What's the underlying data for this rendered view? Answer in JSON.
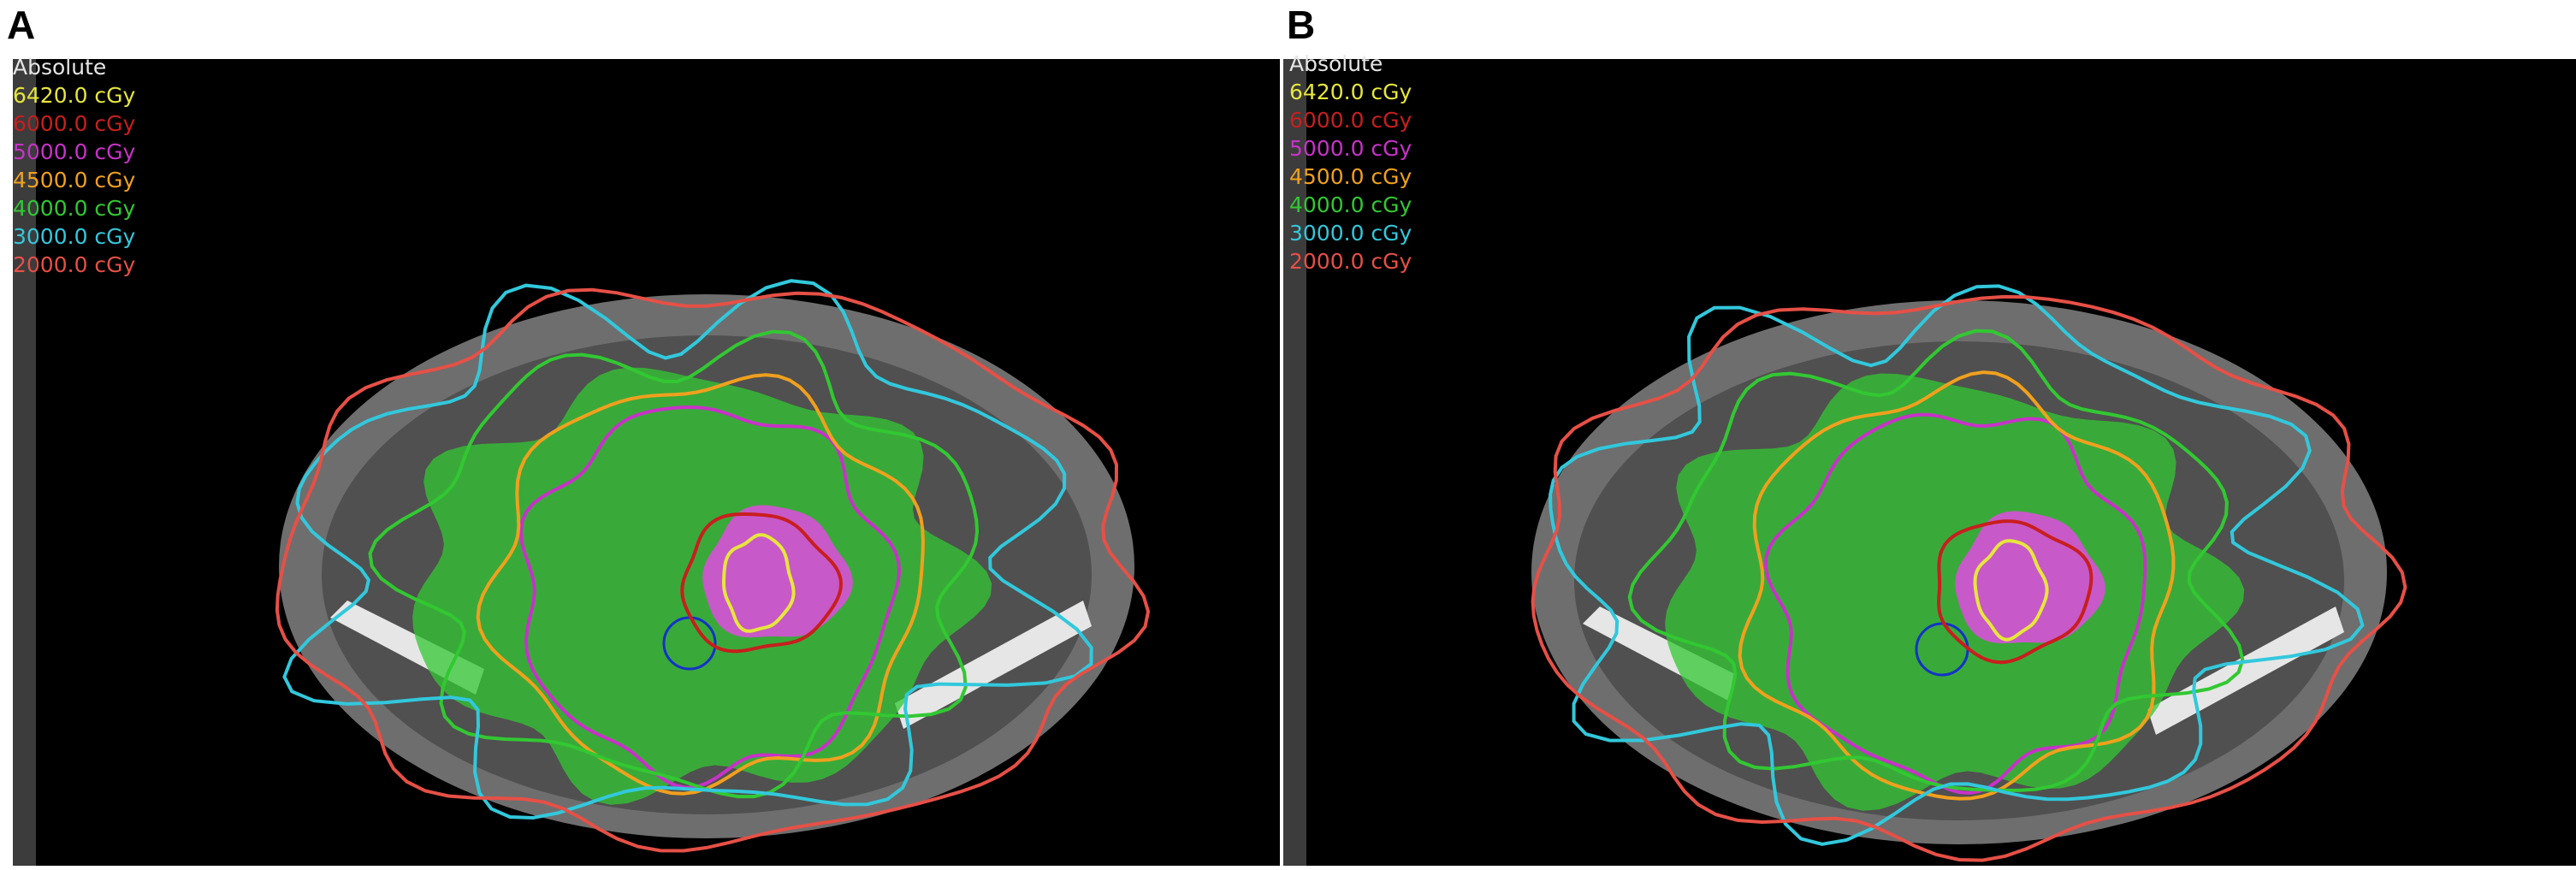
{
  "panels": [
    {
      "label": "A",
      "legend_title": "Absolute",
      "legend": [
        {
          "text": "6420.0 cGy",
          "color": "#e6e63c"
        },
        {
          "text": "6000.0 cGy",
          "color": "#c81e1e"
        },
        {
          "text": "5000.0 cGy",
          "color": "#c832c8"
        },
        {
          "text": "4500.0 cGy",
          "color": "#f0a01e"
        },
        {
          "text": "4000.0 cGy",
          "color": "#32c832"
        },
        {
          "text": "3000.0 cGy",
          "color": "#32c8dc"
        },
        {
          "text": "2000.0 cGy",
          "color": "#e65046"
        }
      ]
    },
    {
      "label": "B",
      "legend_title": "Absolute",
      "legend": [
        {
          "text": "6420.0 cGy",
          "color": "#e6e63c"
        },
        {
          "text": "6000.0 cGy",
          "color": "#c81e1e"
        },
        {
          "text": "5000.0 cGy",
          "color": "#c832c8"
        },
        {
          "text": "4500.0 cGy",
          "color": "#f0a01e"
        },
        {
          "text": "4000.0 cGy",
          "color": "#32c832"
        },
        {
          "text": "3000.0 cGy",
          "color": "#32c8dc"
        },
        {
          "text": "2000.0 cGy",
          "color": "#e65046"
        }
      ]
    }
  ]
}
